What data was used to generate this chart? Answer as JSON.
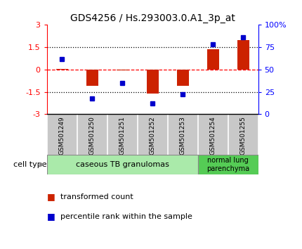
{
  "title": "GDS4256 / Hs.293003.0.A1_3p_at",
  "samples": [
    "GSM501249",
    "GSM501250",
    "GSM501251",
    "GSM501252",
    "GSM501253",
    "GSM501254",
    "GSM501255"
  ],
  "red_values": [
    0.05,
    -1.1,
    -0.05,
    -1.6,
    -1.1,
    1.35,
    2.0
  ],
  "blue_values": [
    62,
    18,
    35,
    12,
    22,
    78,
    86
  ],
  "ylim_left": [
    -3,
    3
  ],
  "ylim_right": [
    0,
    100
  ],
  "yticks_left": [
    -3,
    -1.5,
    0,
    1.5,
    3
  ],
  "yticks_right": [
    0,
    25,
    50,
    75,
    100
  ],
  "ytick_labels_left": [
    "-3",
    "-1.5",
    "0",
    "1.5",
    "3"
  ],
  "ytick_labels_right": [
    "0",
    "25",
    "50",
    "75",
    "100%"
  ],
  "red_color": "#cc2200",
  "blue_color": "#0000cc",
  "bar_width": 0.4,
  "group1_label": "caseous TB granulomas",
  "group1_samples": [
    0,
    1,
    2,
    3,
    4
  ],
  "group1_color": "#aaeaaa",
  "group2_label": "normal lung\nparenchyma",
  "group2_samples": [
    5,
    6
  ],
  "group2_color": "#55cc55",
  "cell_type_label": "cell type",
  "legend_red": "transformed count",
  "legend_blue": "percentile rank within the sample",
  "background_color": "#ffffff",
  "tick_area_color": "#c8c8c8"
}
